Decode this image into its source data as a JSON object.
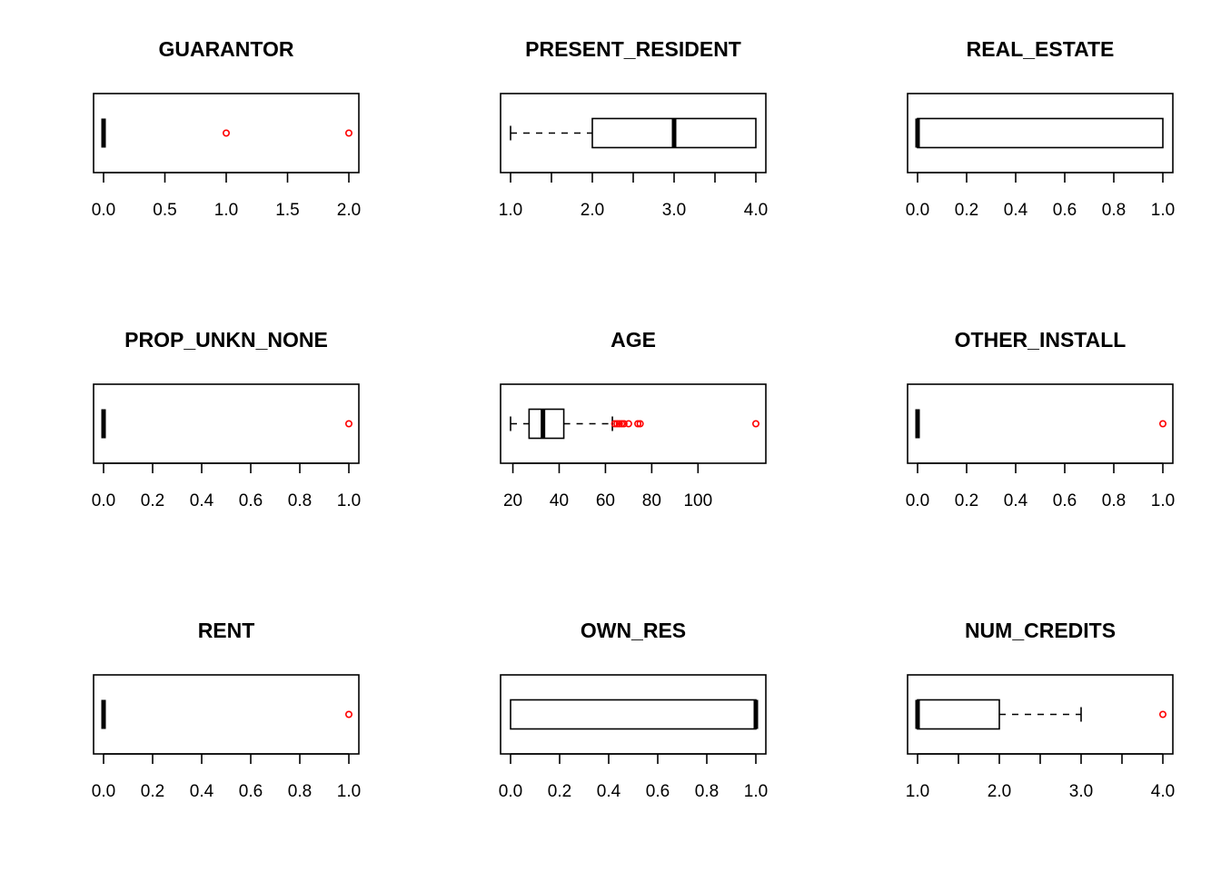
{
  "figure": {
    "background": "#ffffff",
    "box_color": "#000000",
    "outlier_color": "#ff0000"
  },
  "chart_data": [
    {
      "type": "boxplot",
      "orientation": "horizontal",
      "title": "GUARANTOR",
      "xlim": [
        0,
        2
      ],
      "ticks": [
        0,
        0.5,
        1,
        1.5,
        2
      ],
      "tick_labels": [
        "0.0",
        "0.5",
        "1.0",
        "1.5",
        "2.0"
      ],
      "whisker_low": 0,
      "q1": 0,
      "median": 0,
      "q3": 0,
      "whisker_high": 0,
      "outliers": [
        1,
        2
      ]
    },
    {
      "type": "boxplot",
      "orientation": "horizontal",
      "title": "PRESENT_RESIDENT",
      "xlim": [
        1,
        4
      ],
      "ticks": [
        1,
        1.5,
        2,
        2.5,
        3,
        3.5,
        4
      ],
      "tick_labels": [
        "1.0",
        "",
        "2.0",
        "",
        "3.0",
        "",
        "4.0"
      ],
      "whisker_low": 1,
      "q1": 2,
      "median": 3,
      "q3": 4,
      "whisker_high": 4,
      "outliers": []
    },
    {
      "type": "boxplot",
      "orientation": "horizontal",
      "title": "REAL_ESTATE",
      "xlim": [
        0,
        1
      ],
      "ticks": [
        0,
        0.2,
        0.4,
        0.6,
        0.8,
        1
      ],
      "tick_labels": [
        "0.0",
        "0.2",
        "0.4",
        "0.6",
        "0.8",
        "1.0"
      ],
      "whisker_low": 0,
      "q1": 0,
      "median": 0,
      "q3": 1,
      "whisker_high": 1,
      "outliers": []
    },
    {
      "type": "boxplot",
      "orientation": "horizontal",
      "title": "PROP_UNKN_NONE",
      "xlim": [
        0,
        1
      ],
      "ticks": [
        0,
        0.2,
        0.4,
        0.6,
        0.8,
        1
      ],
      "tick_labels": [
        "0.0",
        "0.2",
        "0.4",
        "0.6",
        "0.8",
        "1.0"
      ],
      "whisker_low": 0,
      "q1": 0,
      "median": 0,
      "q3": 0,
      "whisker_high": 0,
      "outliers": [
        1
      ]
    },
    {
      "type": "boxplot",
      "orientation": "horizontal",
      "title": "AGE",
      "xlim": [
        19,
        125
      ],
      "ticks": [
        20,
        40,
        60,
        80,
        100
      ],
      "tick_labels": [
        "20",
        "40",
        "60",
        "80",
        "100"
      ],
      "whisker_low": 19,
      "q1": 27,
      "median": 33,
      "q3": 42,
      "whisker_high": 63,
      "outliers": [
        64,
        65,
        66,
        67,
        68,
        70,
        74,
        75,
        125
      ]
    },
    {
      "type": "boxplot",
      "orientation": "horizontal",
      "title": "OTHER_INSTALL",
      "xlim": [
        0,
        1
      ],
      "ticks": [
        0,
        0.2,
        0.4,
        0.6,
        0.8,
        1
      ],
      "tick_labels": [
        "0.0",
        "0.2",
        "0.4",
        "0.6",
        "0.8",
        "1.0"
      ],
      "whisker_low": 0,
      "q1": 0,
      "median": 0,
      "q3": 0,
      "whisker_high": 0,
      "outliers": [
        1
      ]
    },
    {
      "type": "boxplot",
      "orientation": "horizontal",
      "title": "RENT",
      "xlim": [
        0,
        1
      ],
      "ticks": [
        0,
        0.2,
        0.4,
        0.6,
        0.8,
        1
      ],
      "tick_labels": [
        "0.0",
        "0.2",
        "0.4",
        "0.6",
        "0.8",
        "1.0"
      ],
      "whisker_low": 0,
      "q1": 0,
      "median": 0,
      "q3": 0,
      "whisker_high": 0,
      "outliers": [
        1
      ]
    },
    {
      "type": "boxplot",
      "orientation": "horizontal",
      "title": "OWN_RES",
      "xlim": [
        0,
        1
      ],
      "ticks": [
        0,
        0.2,
        0.4,
        0.6,
        0.8,
        1
      ],
      "tick_labels": [
        "0.0",
        "0.2",
        "0.4",
        "0.6",
        "0.8",
        "1.0"
      ],
      "whisker_low": 0,
      "q1": 0,
      "median": 1,
      "q3": 1,
      "whisker_high": 1,
      "outliers": []
    },
    {
      "type": "boxplot",
      "orientation": "horizontal",
      "title": "NUM_CREDITS",
      "xlim": [
        1,
        4
      ],
      "ticks": [
        1,
        1.5,
        2,
        2.5,
        3,
        3.5,
        4
      ],
      "tick_labels": [
        "1.0",
        "",
        "2.0",
        "",
        "3.0",
        "",
        "4.0"
      ],
      "whisker_low": 1,
      "q1": 1,
      "median": 1,
      "q3": 2,
      "whisker_high": 3,
      "outliers": [
        4
      ]
    }
  ]
}
